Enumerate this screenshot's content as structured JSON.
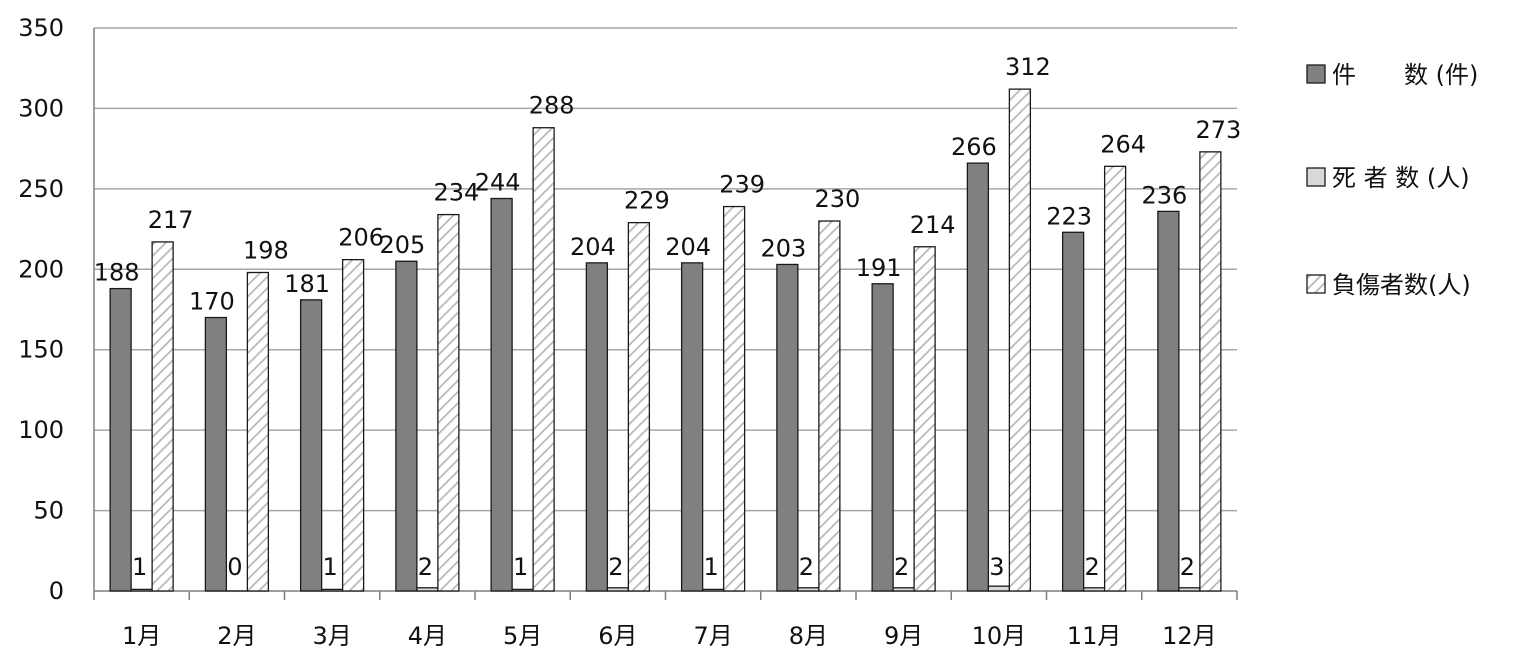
{
  "chart_data": {
    "type": "bar",
    "title": "",
    "xlabel": "",
    "ylabel": "",
    "ylim": [
      0,
      350
    ],
    "yticks": [
      0,
      50,
      100,
      150,
      200,
      250,
      300,
      350
    ],
    "grid": true,
    "legend_position": "right",
    "categories": [
      "1月",
      "2月",
      "3月",
      "4月",
      "5月",
      "6月",
      "7月",
      "8月",
      "9月",
      "10月",
      "11月",
      "12月"
    ],
    "series": [
      {
        "name": "件　　数 (件)",
        "values": [
          188,
          170,
          181,
          205,
          244,
          204,
          204,
          203,
          191,
          266,
          223,
          236
        ],
        "color": "#808080",
        "pattern": "solid"
      },
      {
        "name": "死 者 数 (人)",
        "values": [
          1,
          0,
          1,
          2,
          1,
          2,
          1,
          2,
          2,
          3,
          2,
          2
        ],
        "color": "#d9d9d9",
        "pattern": "solid"
      },
      {
        "name": "負傷者数(人)",
        "values": [
          217,
          198,
          206,
          234,
          288,
          229,
          239,
          230,
          214,
          312,
          264,
          273
        ],
        "color": "#cfcfcf",
        "pattern": "hatch"
      }
    ]
  }
}
